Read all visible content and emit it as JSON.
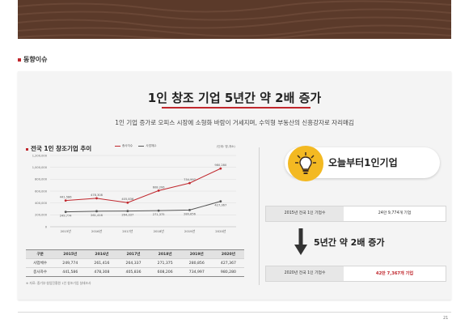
{
  "section": {
    "label": "동향이슈"
  },
  "headline": {
    "title": "1인 창조 기업 5년간 약 2배 증가",
    "subtitle": "1인 기업 증가로 오피스 시장에 소형화 바람이 거세지며, 수익형 부동산의 신흥강자로 자리매김"
  },
  "chart_data": {
    "type": "line",
    "title": "전국 1인 창조기업 추이",
    "unit_note": "(단위: 명,개소)",
    "categories": [
      "2015년",
      "2016년",
      "2017년",
      "2018년",
      "2019년",
      "2020년"
    ],
    "series": [
      {
        "name": "종사자수",
        "values": [
          441586,
          478308,
          405836,
          608206,
          734997,
          980280
        ],
        "labels": [
          "441,586",
          "478,308",
          "405,836",
          "608,206",
          "734,997",
          "980,280"
        ],
        "color": "#c0272d"
      },
      {
        "name": "사업체수",
        "values": [
          249774,
          261416,
          264337,
          271375,
          280856,
          427367
        ],
        "labels": [
          "249,774",
          "261,416",
          "264,337",
          "271,375",
          "280,856",
          "427,367"
        ],
        "color": "#555555"
      }
    ],
    "ylim": [
      0,
      1200000
    ],
    "yticks": [
      0,
      200000,
      400000,
      600000,
      800000,
      1000000,
      1200000
    ],
    "ytick_labels": [
      "0",
      "200,000",
      "400,000",
      "600,000",
      "800,000",
      "1,000,000",
      "1,200,000"
    ],
    "grid": true,
    "legend": "top-left"
  },
  "table": {
    "headers": [
      "구분",
      "2015년",
      "2016년",
      "2017년",
      "2018년",
      "2019년",
      "2020년"
    ],
    "rows": [
      [
        "사업체수",
        "249,774",
        "261,416",
        "264,337",
        "271,375",
        "280,856",
        "427,367"
      ],
      [
        "종사자수",
        "441,586",
        "478,308",
        "405,836",
        "608,206",
        "734,997",
        "980,280"
      ]
    ],
    "footnote": "※ 자료: 중기부·창업진흥원 1인 창조기업 실태조사"
  },
  "right_panel": {
    "badge": "오늘부터1인기업",
    "row1": {
      "label": "2015년 전국 1인 기업수",
      "value": "24만 9,774개 기업"
    },
    "growth": "5년간 약 2배 증가",
    "row2": {
      "label": "2020년 전국 1인 기업수",
      "value": "42만 7,367개 기업"
    }
  },
  "page_number": "21",
  "colors": {
    "banner": "#5b3a2a",
    "accent": "#c0272d",
    "bulb": "#f3b922"
  }
}
